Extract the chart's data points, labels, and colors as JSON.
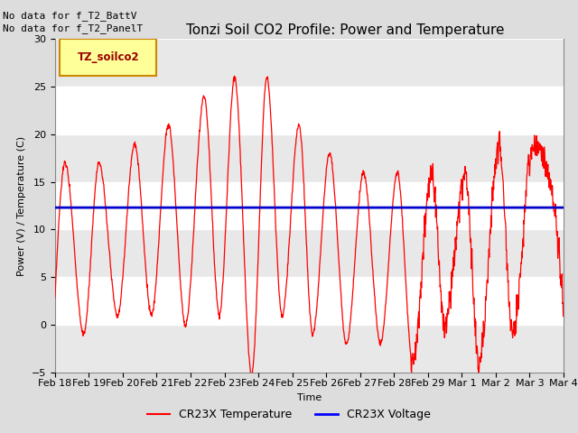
{
  "title": "Tonzi Soil CO2 Profile: Power and Temperature",
  "xlabel": "Time",
  "ylabel": "Power (V) / Temperature (C)",
  "ylim": [
    -5,
    30
  ],
  "yticks": [
    -5,
    0,
    5,
    10,
    15,
    20,
    25,
    30
  ],
  "no_data_text1": "No data for f_T2_BattV",
  "no_data_text2": "No data for f_T2_PanelT",
  "legend_label_text": "TZ_soilco2",
  "legend_label1": "CR23X Temperature",
  "legend_label2": "CR23X Voltage",
  "line1_color": "#ff0000",
  "line2_color": "#0000cc",
  "bg_color": "#dddddd",
  "plot_bg_color": "#ffffff",
  "stripe_color": "#e8e8e8",
  "voltage_value": 12.3,
  "xtick_labels": [
    "Feb 18",
    "Feb 19",
    "Feb 20",
    "Feb 21",
    "Feb 22",
    "Feb 23",
    "Feb 24",
    "Feb 25",
    "Feb 26",
    "Feb 27",
    "Feb 28",
    "Feb 29",
    "Mar 1",
    "Mar 2",
    "Mar 3",
    "Mar 4"
  ],
  "title_fontsize": 11,
  "axis_fontsize": 8,
  "tick_fontsize": 8,
  "nodata_fontsize": 8
}
